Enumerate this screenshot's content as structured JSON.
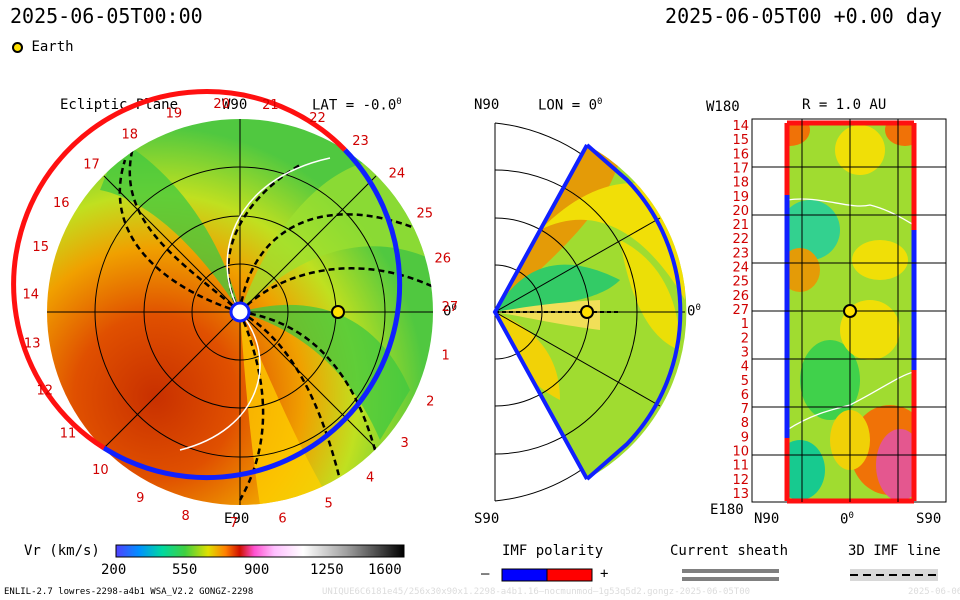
{
  "header": {
    "left_time": "2025-06-05T00:00",
    "right_time": "2025-06-05T00 +0.00 day"
  },
  "legend_top": {
    "earth_label": "Earth"
  },
  "panel1": {
    "title": "Ecliptic Plane",
    "top_label": "W90",
    "lat": "LAT = -0.0",
    "lat_sup": "0",
    "bottom_label": "E90",
    "right_label": "0",
    "right_sup": "0",
    "carrington": [
      "20",
      "21",
      "22",
      "23",
      "24",
      "25",
      "26",
      "27",
      "1",
      "2",
      "3",
      "4",
      "5",
      "6",
      "7",
      "8",
      "9",
      "10",
      "11",
      "12",
      "13",
      "14",
      "15",
      "16",
      "17",
      "18",
      "19"
    ]
  },
  "panel2": {
    "top_label": "N90",
    "lon": "LON = 0",
    "lon_sup": "0",
    "bottom_label": "S90",
    "right_label": "0",
    "right_sup": "0"
  },
  "panel3": {
    "top_left": "W180",
    "title": "R = 1.0 AU",
    "bottom_left": "E180",
    "x_labels": [
      "N90",
      "0",
      "S90"
    ],
    "x_sup": "0",
    "y_labels": [
      "14",
      "15",
      "16",
      "17",
      "18",
      "19",
      "20",
      "21",
      "22",
      "23",
      "24",
      "25",
      "26",
      "27",
      "1",
      "2",
      "3",
      "4",
      "5",
      "6",
      "7",
      "8",
      "9",
      "10",
      "11",
      "12",
      "13"
    ]
  },
  "colorbar": {
    "label": "Vr (km/s)",
    "ticks": [
      "200",
      "550",
      "900",
      "1250",
      "1600"
    ],
    "colors": [
      "#3030ff",
      "#00c0ff",
      "#00d890",
      "#40d040",
      "#a0e020",
      "#ffe000",
      "#ff8000",
      "#e02000",
      "#ff40c0",
      "#c0c0c0",
      "#ffffff",
      "#000000"
    ]
  },
  "imf": {
    "label": "IMF polarity",
    "minus": "–",
    "plus": "+",
    "neg_color": "#0000ff",
    "pos_color": "#ff0000"
  },
  "sheath": {
    "label": "Current sheath"
  },
  "imfline": {
    "label": "3D IMF line"
  },
  "footer": {
    "left": "ENLIL-2.7 lowres-2298-a4b1 WSA_V2.2 GONGZ-2298",
    "mid": "UNIQUE6C6181e45/256x30x90x1.2298-a4b1.16—nocmunmod—1g53q5d2.gongz-2025-06-05T00",
    "right": "2025-06-06"
  }
}
